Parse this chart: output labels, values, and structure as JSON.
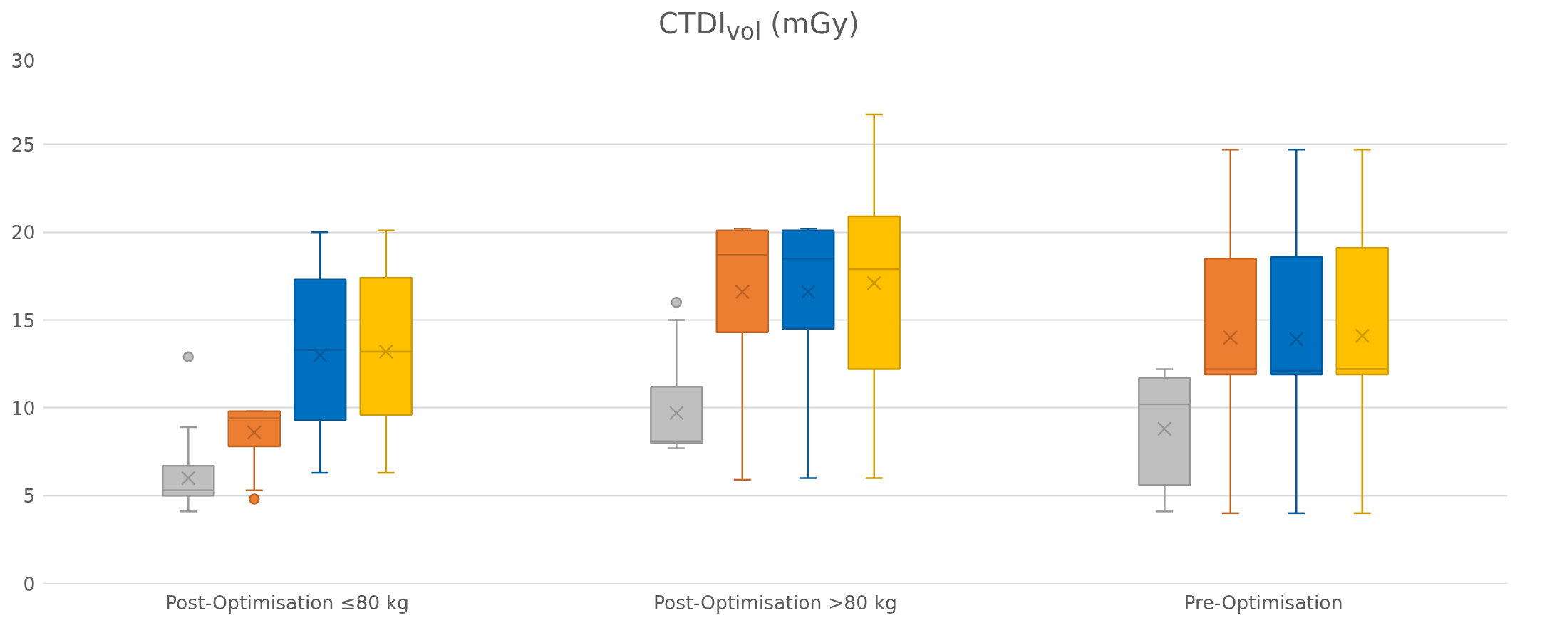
{
  "chart_data": {
    "type": "box",
    "title": "CTDI$_{vol}$ (mGy)",
    "categories": [
      "Post-Optimisation ≤80 kg",
      "Post-Optimisation >80 kg",
      "Pre-Optimisation"
    ],
    "ylim": [
      0,
      30
    ],
    "yticks": [
      0,
      5,
      10,
      15,
      20,
      25,
      30
    ],
    "grid": "y",
    "series": [
      {
        "color": "#bfbfbf",
        "boxes": [
          {
            "low": 4.1,
            "q1": 5.0,
            "median": 5.3,
            "q3": 6.7,
            "high": 8.9,
            "mean": 6.0,
            "outliers": [
              12.9
            ]
          },
          {
            "low": 7.7,
            "q1": 8.0,
            "median": 8.1,
            "q3": 11.2,
            "high": 15.0,
            "mean": 9.7,
            "outliers": [
              16.0
            ]
          },
          {
            "low": 4.1,
            "q1": 5.6,
            "median": 10.2,
            "q3": 11.7,
            "high": 12.2,
            "mean": 8.8
          }
        ]
      },
      {
        "color": "#ed7d31",
        "boxes": [
          {
            "low": 5.3,
            "q1": 7.8,
            "median": 9.4,
            "q3": 9.8,
            "high": 9.8,
            "mean": 8.6,
            "outliers": [
              4.8
            ]
          },
          {
            "low": 5.9,
            "q1": 14.3,
            "median": 18.7,
            "q3": 20.1,
            "high": 20.2,
            "mean": 16.6
          },
          {
            "low": 4.0,
            "q1": 11.9,
            "median": 12.2,
            "q3": 18.5,
            "high": 24.7,
            "mean": 14.0
          }
        ]
      },
      {
        "color": "#0070c0",
        "boxes": [
          {
            "low": 6.3,
            "q1": 9.3,
            "median": 13.3,
            "q3": 17.3,
            "high": 20.0,
            "mean": 13.0
          },
          {
            "low": 6.0,
            "q1": 14.5,
            "median": 18.5,
            "q3": 20.1,
            "high": 20.2,
            "mean": 16.6
          },
          {
            "low": 4.0,
            "q1": 11.9,
            "median": 12.1,
            "q3": 18.6,
            "high": 24.7,
            "mean": 13.9
          }
        ]
      },
      {
        "color": "#ffc000",
        "boxes": [
          {
            "low": 6.3,
            "q1": 9.6,
            "median": 13.2,
            "q3": 17.4,
            "high": 20.1,
            "mean": 13.2
          },
          {
            "low": 6.0,
            "q1": 12.2,
            "median": 17.9,
            "q3": 20.9,
            "high": 26.7,
            "mean": 17.1
          },
          {
            "low": 4.0,
            "q1": 11.9,
            "median": 12.2,
            "q3": 19.1,
            "high": 24.7,
            "mean": 14.1
          }
        ]
      }
    ]
  }
}
